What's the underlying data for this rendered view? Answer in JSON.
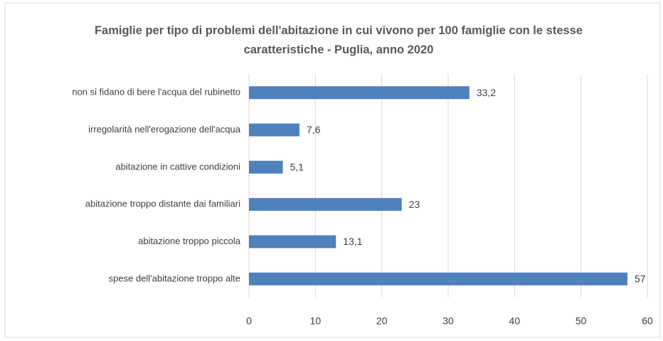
{
  "chart_data": {
    "type": "barh",
    "title": "Famiglie per tipo di problemi dell'abitazione in cui vivono per 100 famiglie con le stesse caratteristiche - Puglia, anno 2020",
    "categories": [
      "non si fidano di bere l'acqua del rubinetto",
      "irregolarità nell'erogazione dell'acqua",
      "abitazione in cattive condizioni",
      "abitazione troppo distante dai familiari",
      "abitazione troppo piccola",
      "spese dell'abitazione troppo alte"
    ],
    "values": [
      33.2,
      7.6,
      5.1,
      23,
      13.1,
      57
    ],
    "value_labels": [
      "33,2",
      "7,6",
      "5,1",
      "23",
      "13,1",
      "57"
    ],
    "color": "#4f81bd",
    "xlim": [
      0,
      60
    ],
    "xticks": [
      0,
      10,
      20,
      30,
      40,
      50,
      60
    ],
    "grid": true
  }
}
